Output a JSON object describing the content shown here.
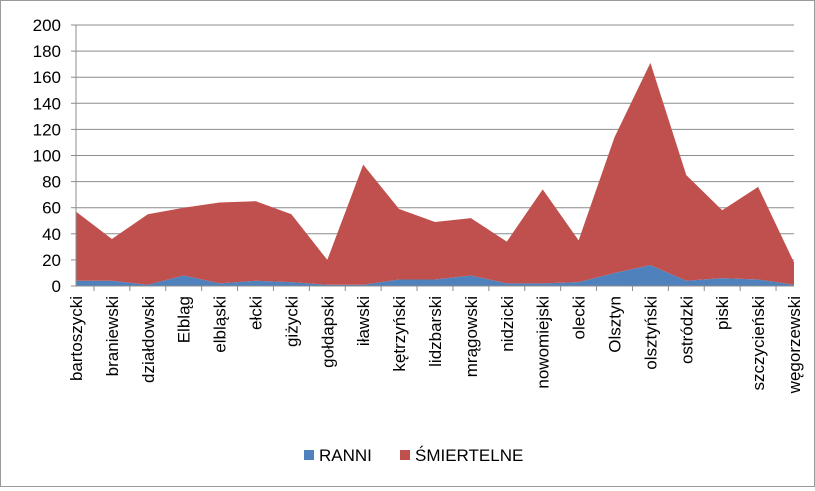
{
  "chart_data": {
    "type": "area",
    "stacked": true,
    "categories": [
      "bartoszycki",
      "braniewski",
      "działdowski",
      "Elbląg",
      "elbląski",
      "ełcki",
      "giżycki",
      "gołdapski",
      "iławski",
      "kętrzyński",
      "lidzbarski",
      "mrągowski",
      "nidzicki",
      "nowomiejski",
      "olecki",
      "Olsztyn",
      "olsztyński",
      "ostródzki",
      "piski",
      "szczycieński",
      "węgorzewski"
    ],
    "series": [
      {
        "name": "RANNI",
        "color": "#4f81bd",
        "values": [
          4,
          4,
          1,
          8,
          2,
          4,
          3,
          1,
          1,
          5,
          5,
          8,
          2,
          2,
          3,
          10,
          16,
          4,
          6,
          5,
          1
        ]
      },
      {
        "name": "ŚMIERTELNE",
        "color": "#c0504d",
        "values": [
          53,
          32,
          54,
          52,
          62,
          61,
          52,
          19,
          92,
          54,
          44,
          44,
          32,
          72,
          32,
          104,
          155,
          81,
          52,
          71,
          17
        ]
      }
    ],
    "y_ticks": [
      "0",
      "20",
      "40",
      "60",
      "80",
      "100",
      "120",
      "140",
      "160",
      "180",
      "200"
    ],
    "ylim": [
      0,
      200
    ],
    "grid": true,
    "legend_position": "bottom",
    "title": "",
    "xlabel": "",
    "ylabel": ""
  }
}
